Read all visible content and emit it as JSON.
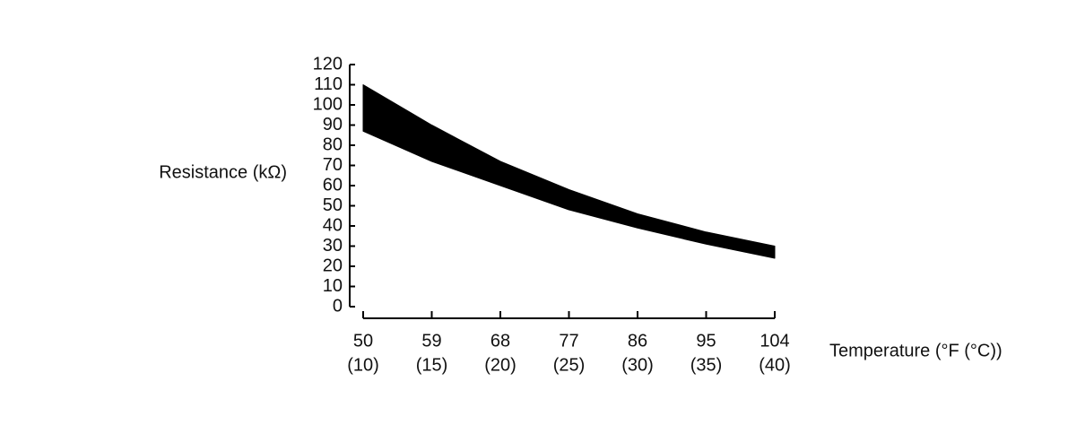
{
  "chart_data": {
    "type": "band",
    "y_label": "Resistance (kΩ)",
    "x_label": "Temperature (°F (°C))",
    "x": [
      50,
      59,
      68,
      77,
      86,
      95,
      104
    ],
    "series": [
      {
        "values": [
          110,
          90,
          72,
          58,
          46,
          37,
          30
        ]
      },
      {
        "values": [
          87,
          72,
          60,
          48,
          39,
          31,
          24
        ]
      }
    ],
    "color": "#000000",
    "xlim": [
      50,
      104
    ],
    "xticks": [
      50,
      59,
      68,
      77,
      86,
      95,
      104
    ],
    "xtick_secondary_labels": [
      "(10)",
      "(15)",
      "(20)",
      "(25)",
      "(30)",
      "(35)",
      "(40)"
    ],
    "ylim": [
      0,
      120
    ],
    "yticks": [
      0,
      10,
      20,
      30,
      40,
      50,
      60,
      70,
      80,
      90,
      100,
      110,
      120
    ]
  }
}
